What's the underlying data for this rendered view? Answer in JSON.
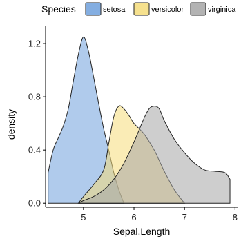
{
  "chart_data": {
    "type": "area",
    "xlabel": "Sepal.Length",
    "ylabel": "density",
    "xlim": [
      4.25,
      8.05
    ],
    "ylim": [
      -0.03,
      1.33
    ],
    "x_ticks": [
      5,
      6,
      7,
      8
    ],
    "y_ticks": [
      0.0,
      0.4,
      0.8,
      1.2
    ],
    "y_tick_labels": [
      "0.0",
      "0.4",
      "0.8",
      "1.2"
    ],
    "grid": false,
    "legend": {
      "title": "Species",
      "position": "top",
      "entries": [
        "setosa",
        "versicolor",
        "virginica"
      ]
    },
    "series": [
      {
        "name": "setosa",
        "color": "#6fa0dc",
        "x": [
          4.3,
          4.4,
          4.5,
          4.6,
          4.7,
          4.8,
          4.9,
          5.0,
          5.1,
          5.2,
          5.3,
          5.4,
          5.5,
          5.6,
          5.7,
          5.8
        ],
        "y": [
          0.23,
          0.4,
          0.49,
          0.58,
          0.71,
          0.92,
          1.12,
          1.25,
          1.14,
          0.95,
          0.75,
          0.56,
          0.4,
          0.23,
          0.1,
          0.0
        ]
      },
      {
        "name": "versicolor",
        "color": "#f5dc7a",
        "x": [
          4.9,
          5.0,
          5.2,
          5.4,
          5.5,
          5.6,
          5.7,
          5.8,
          5.9,
          6.0,
          6.2,
          6.4,
          6.5,
          6.6,
          6.8,
          7.0
        ],
        "y": [
          0.0,
          0.05,
          0.14,
          0.25,
          0.45,
          0.65,
          0.73,
          0.71,
          0.66,
          0.6,
          0.52,
          0.4,
          0.32,
          0.24,
          0.1,
          0.0
        ]
      },
      {
        "name": "virginica",
        "color": "#a6a6a6",
        "x": [
          4.9,
          5.0,
          5.2,
          5.4,
          5.6,
          5.8,
          6.0,
          6.2,
          6.3,
          6.4,
          6.5,
          6.6,
          6.8,
          7.0,
          7.2,
          7.4,
          7.6,
          7.8,
          7.9
        ],
        "y": [
          0.0,
          0.02,
          0.05,
          0.1,
          0.18,
          0.3,
          0.46,
          0.64,
          0.71,
          0.73,
          0.71,
          0.62,
          0.48,
          0.38,
          0.3,
          0.25,
          0.24,
          0.23,
          0.18
        ]
      }
    ]
  }
}
